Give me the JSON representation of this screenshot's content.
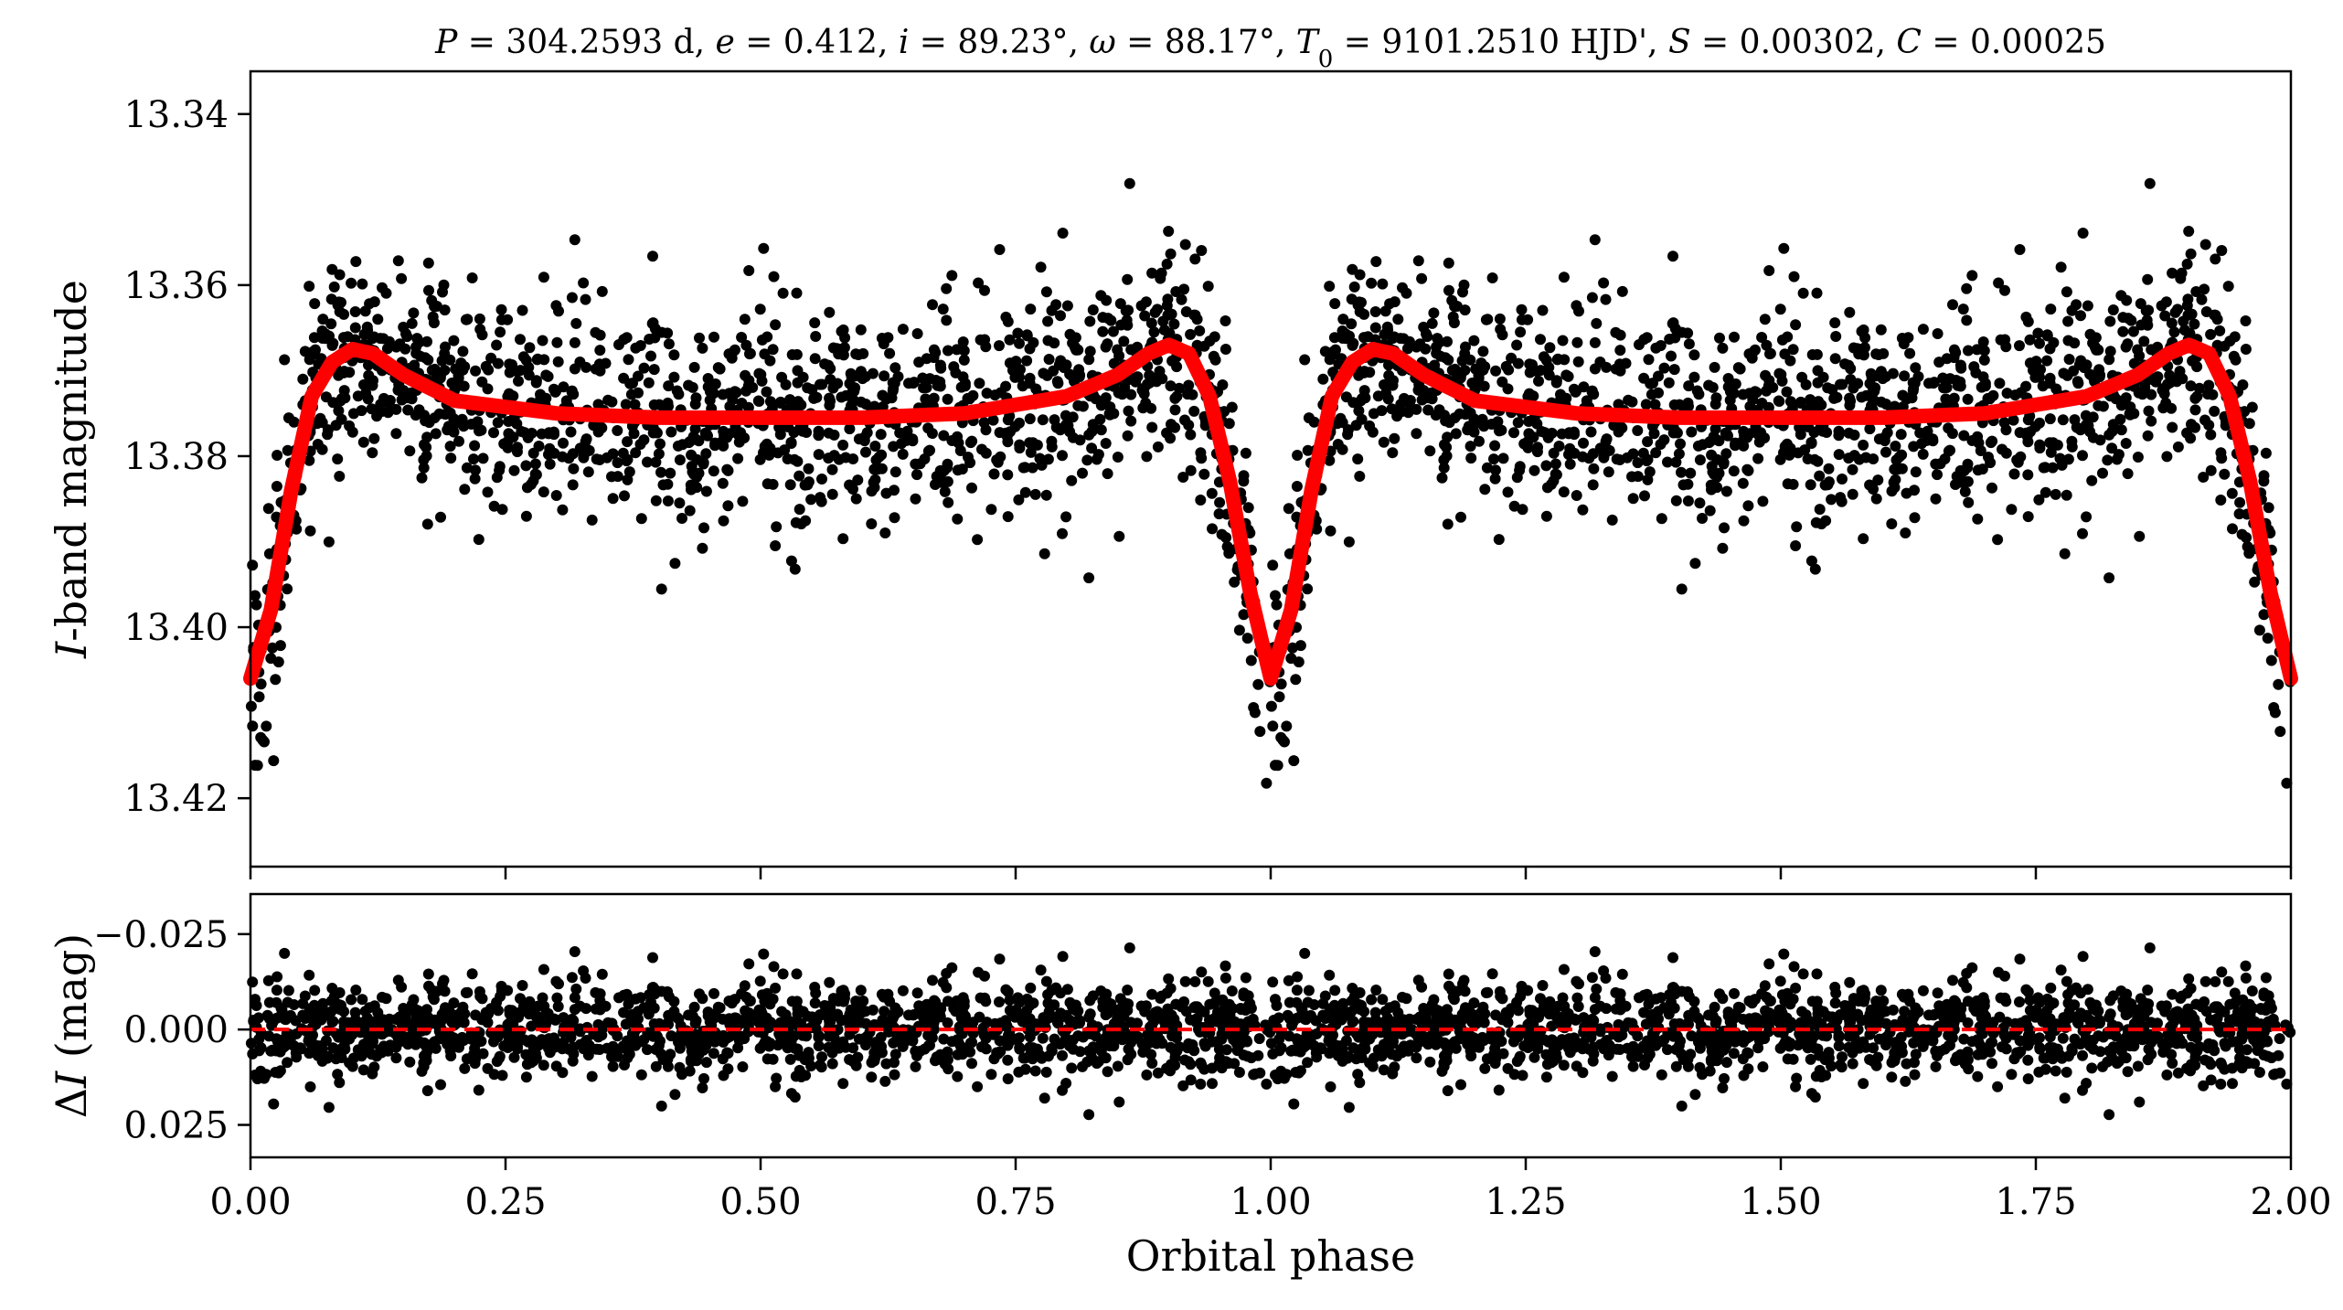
{
  "chart_data": [
    {
      "type": "scatter",
      "panel": "light-curve",
      "title": "P = 304.2593 d, e = 0.412, i = 89.23°, ω = 88.17°, T0 = 9101.2510 HJD', S = 0.00302, C = 0.00025",
      "title_parts": {
        "P": "304.2593 d",
        "e": "0.412",
        "i": "89.23°",
        "omega": "88.17°",
        "T0": "9101.2510 HJD'",
        "S": "0.00302",
        "C": "0.00025"
      },
      "ylabel_italic": "I",
      "ylabel_rest": "-band magnitude",
      "xlim": [
        0.0,
        2.0
      ],
      "ylim": [
        13.428,
        13.335
      ],
      "y_inverted": true,
      "yticks": [
        13.34,
        13.36,
        13.38,
        13.4,
        13.42
      ],
      "ytick_labels": [
        "13.34",
        "13.36",
        "13.38",
        "13.40",
        "13.42"
      ],
      "xticks": [
        0.0,
        0.25,
        0.5,
        0.75,
        1.0,
        1.25,
        1.5,
        1.75,
        2.0
      ],
      "grid": false,
      "legend": "none",
      "series": [
        {
          "kind": "points",
          "color": "#000000",
          "description_of_spread": "scatter around model",
          "baseline_mag": 13.375,
          "scatter_sigma_mag": 0.006
        },
        {
          "kind": "model-line",
          "color": "#ff0000",
          "x": [
            0.0,
            0.02,
            0.04,
            0.06,
            0.08,
            0.1,
            0.12,
            0.15,
            0.2,
            0.3,
            0.4,
            0.5,
            0.6,
            0.7,
            0.8,
            0.85,
            0.88,
            0.9,
            0.92,
            0.94,
            0.96,
            0.98,
            1.0,
            1.02,
            1.04,
            1.06,
            1.08,
            1.1,
            1.12,
            1.15,
            1.2,
            1.3,
            1.4,
            1.5,
            1.6,
            1.7,
            1.8,
            1.85,
            1.88,
            1.9,
            1.92,
            1.94,
            1.96,
            1.98,
            2.0
          ],
          "y": [
            13.406,
            13.398,
            13.384,
            13.373,
            13.369,
            13.3675,
            13.368,
            13.3705,
            13.3735,
            13.375,
            13.3755,
            13.3755,
            13.3755,
            13.375,
            13.373,
            13.3705,
            13.368,
            13.367,
            13.368,
            13.373,
            13.383,
            13.396,
            13.406,
            13.398,
            13.384,
            13.373,
            13.369,
            13.3675,
            13.368,
            13.3705,
            13.3735,
            13.375,
            13.3755,
            13.3755,
            13.3755,
            13.375,
            13.373,
            13.3705,
            13.368,
            13.367,
            13.368,
            13.373,
            13.383,
            13.396,
            13.406
          ]
        }
      ]
    },
    {
      "type": "scatter",
      "panel": "residuals",
      "ylabel_prefix": "Δ",
      "ylabel_italic": "I",
      "ylabel_rest": " (mag)",
      "xlabel": "Orbital phase",
      "xlim": [
        0.0,
        2.0
      ],
      "ylim": [
        0.0335,
        -0.0355
      ],
      "y_inverted": true,
      "yticks": [
        -0.025,
        0.0,
        0.025
      ],
      "ytick_labels": [
        "−0.025",
        "0.000",
        "0.025"
      ],
      "xticks": [
        0.0,
        0.25,
        0.5,
        0.75,
        1.0,
        1.25,
        1.5,
        1.75,
        2.0
      ],
      "xtick_labels": [
        "0.00",
        "0.25",
        "0.50",
        "0.75",
        "1.00",
        "1.25",
        "1.50",
        "1.75",
        "2.00"
      ],
      "grid": false,
      "legend": "none",
      "series": [
        {
          "kind": "points",
          "color": "#000000",
          "scatter_sigma_mag": 0.006
        },
        {
          "kind": "zero-line",
          "color": "#ff0000",
          "style": "dashed",
          "y": 0.0
        }
      ]
    }
  ]
}
